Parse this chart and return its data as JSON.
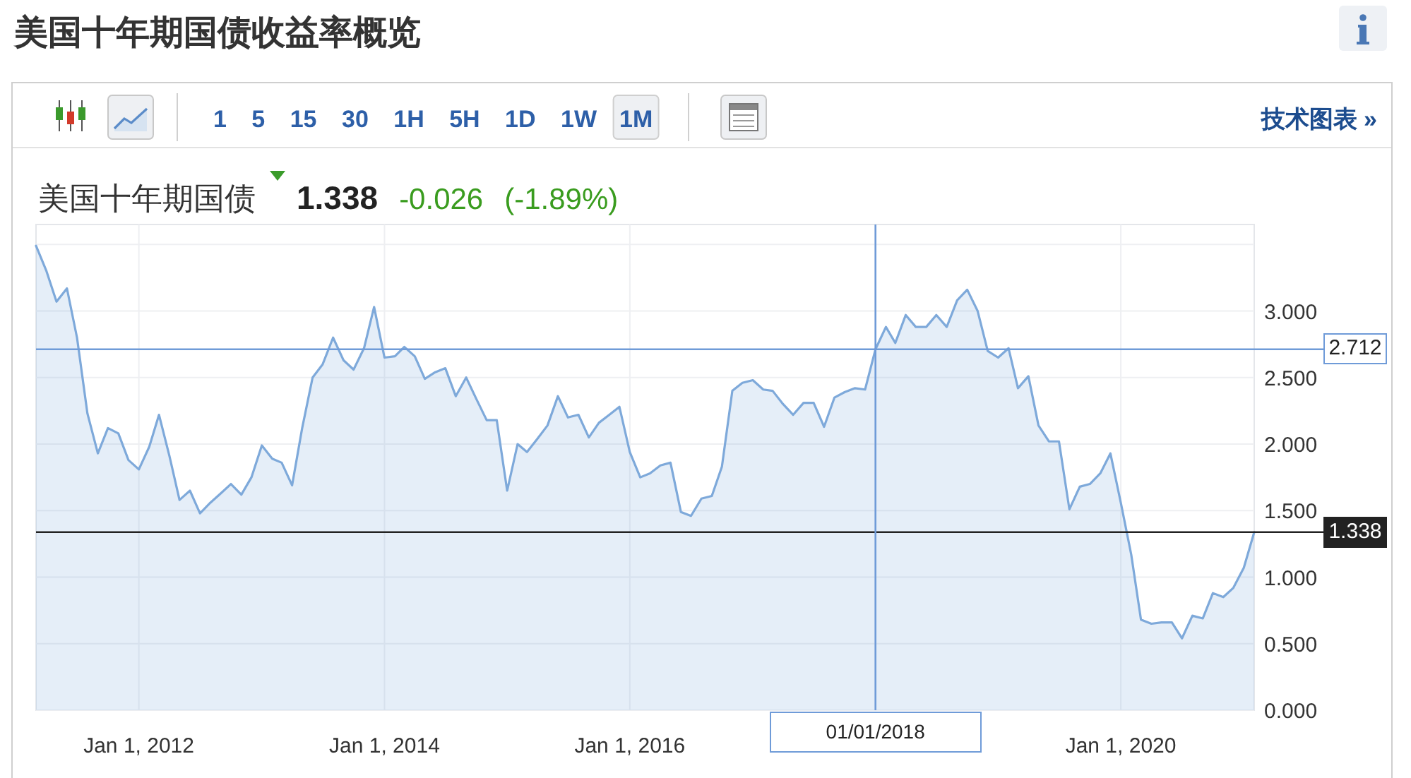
{
  "chart_data": {
    "type": "area",
    "title": "美国十年期国债收益率概览",
    "subtitle": "美国十年期国债",
    "x": [
      "2011-03",
      "2011-04",
      "2011-05",
      "2011-06",
      "2011-07",
      "2011-08",
      "2011-09",
      "2011-10",
      "2011-11",
      "2011-12",
      "2012-01",
      "2012-02",
      "2012-03",
      "2012-04",
      "2012-05",
      "2012-06",
      "2012-07",
      "2012-08",
      "2012-09",
      "2012-10",
      "2012-11",
      "2012-12",
      "2013-01",
      "2013-02",
      "2013-03",
      "2013-04",
      "2013-05",
      "2013-06",
      "2013-07",
      "2013-08",
      "2013-09",
      "2013-10",
      "2013-11",
      "2013-12",
      "2014-01",
      "2014-02",
      "2014-03",
      "2014-04",
      "2014-05",
      "2014-06",
      "2014-07",
      "2014-08",
      "2014-09",
      "2014-10",
      "2014-11",
      "2014-12",
      "2015-01",
      "2015-02",
      "2015-03",
      "2015-04",
      "2015-05",
      "2015-06",
      "2015-07",
      "2015-08",
      "2015-09",
      "2015-10",
      "2015-11",
      "2015-12",
      "2016-01",
      "2016-02",
      "2016-03",
      "2016-04",
      "2016-05",
      "2016-06",
      "2016-07",
      "2016-08",
      "2016-09",
      "2016-10",
      "2016-11",
      "2016-12",
      "2017-01",
      "2017-02",
      "2017-03",
      "2017-04",
      "2017-05",
      "2017-06",
      "2017-07",
      "2017-08",
      "2017-09",
      "2017-10",
      "2017-11",
      "2017-12",
      "2018-01",
      "2018-02",
      "2018-03",
      "2018-04",
      "2018-05",
      "2018-06",
      "2018-07",
      "2018-08",
      "2018-09",
      "2018-10",
      "2018-11",
      "2018-12",
      "2019-01",
      "2019-02",
      "2019-03",
      "2019-04",
      "2019-05",
      "2019-06",
      "2019-07",
      "2019-08",
      "2019-09",
      "2019-10",
      "2019-11",
      "2019-12",
      "2020-01",
      "2020-02",
      "2020-03",
      "2020-04",
      "2020-05",
      "2020-06",
      "2020-07",
      "2020-08",
      "2020-09",
      "2020-10",
      "2020-11",
      "2020-12",
      "2021-01",
      "2021-02"
    ],
    "series": [
      {
        "color": "#7ea9da",
        "values": [
          3.49,
          3.3,
          3.07,
          3.17,
          2.8,
          2.23,
          1.93,
          2.12,
          2.08,
          1.88,
          1.81,
          1.98,
          2.22,
          1.91,
          1.58,
          1.65,
          1.48,
          1.56,
          1.63,
          1.7,
          1.62,
          1.75,
          1.99,
          1.89,
          1.86,
          1.69,
          2.12,
          2.5,
          2.6,
          2.8,
          2.63,
          2.56,
          2.72,
          3.03,
          2.65,
          2.66,
          2.73,
          2.66,
          2.49,
          2.54,
          2.57,
          2.36,
          2.5,
          2.34,
          2.18,
          2.18,
          1.65,
          2.0,
          1.94,
          2.04,
          2.14,
          2.36,
          2.2,
          2.22,
          2.05,
          2.16,
          2.22,
          2.28,
          1.94,
          1.75,
          1.78,
          1.84,
          1.86,
          1.49,
          1.46,
          1.59,
          1.61,
          1.83,
          2.4,
          2.46,
          2.48,
          2.41,
          2.4,
          2.3,
          2.22,
          2.31,
          2.31,
          2.13,
          2.35,
          2.39,
          2.42,
          2.41,
          2.712,
          2.88,
          2.76,
          2.97,
          2.88,
          2.88,
          2.97,
          2.88,
          3.08,
          3.16,
          3.0,
          2.7,
          2.65,
          2.72,
          2.42,
          2.51,
          2.14,
          2.02,
          2.02,
          1.51,
          1.68,
          1.7,
          1.78,
          1.93,
          1.56,
          1.17,
          0.68,
          0.65,
          0.66,
          0.66,
          0.54,
          0.71,
          0.69,
          0.88,
          0.85,
          0.92,
          1.07,
          1.338
        ]
      }
    ],
    "xlim": [
      "2011-03",
      "2021-02"
    ],
    "xticks": [
      {
        "value": "2012-01",
        "label": "Jan 1, 2012"
      },
      {
        "value": "2014-01",
        "label": "Jan 1, 2014"
      },
      {
        "value": "2016-01",
        "label": "Jan 1, 2016"
      },
      {
        "value": "2018-01",
        "label": null
      },
      {
        "value": "2020-01",
        "label": "Jan 1, 2020"
      }
    ],
    "ylim": [
      0,
      3.65
    ],
    "yticks": [
      {
        "value": 0,
        "label": "0.000"
      },
      {
        "value": 0.5,
        "label": "0.500"
      },
      {
        "value": 1,
        "label": "1.000"
      },
      {
        "value": 1.5,
        "label": "1.500"
      },
      {
        "value": 2,
        "label": "2.000"
      },
      {
        "value": 2.5,
        "label": "2.500"
      },
      {
        "value": 3,
        "label": "3.000"
      },
      {
        "value": 3.5,
        "label": null
      }
    ],
    "grid": true,
    "ref_lines": [
      {
        "axis": "y",
        "value": 1.338,
        "label": "1.338",
        "color": "#222222"
      },
      {
        "axis": "y",
        "value": 2.712,
        "label": "2.712",
        "color": "#6f9bd8"
      },
      {
        "axis": "x",
        "value": "2018-01",
        "label": "01/01/2018",
        "color": "#6f9bd8"
      }
    ],
    "annotations": [
      "1.338",
      "-0.026",
      "(-1.89%)",
      "1 5 15 30 1H 5H 1D 1W",
      "1M",
      "技术图表 »"
    ]
  }
}
